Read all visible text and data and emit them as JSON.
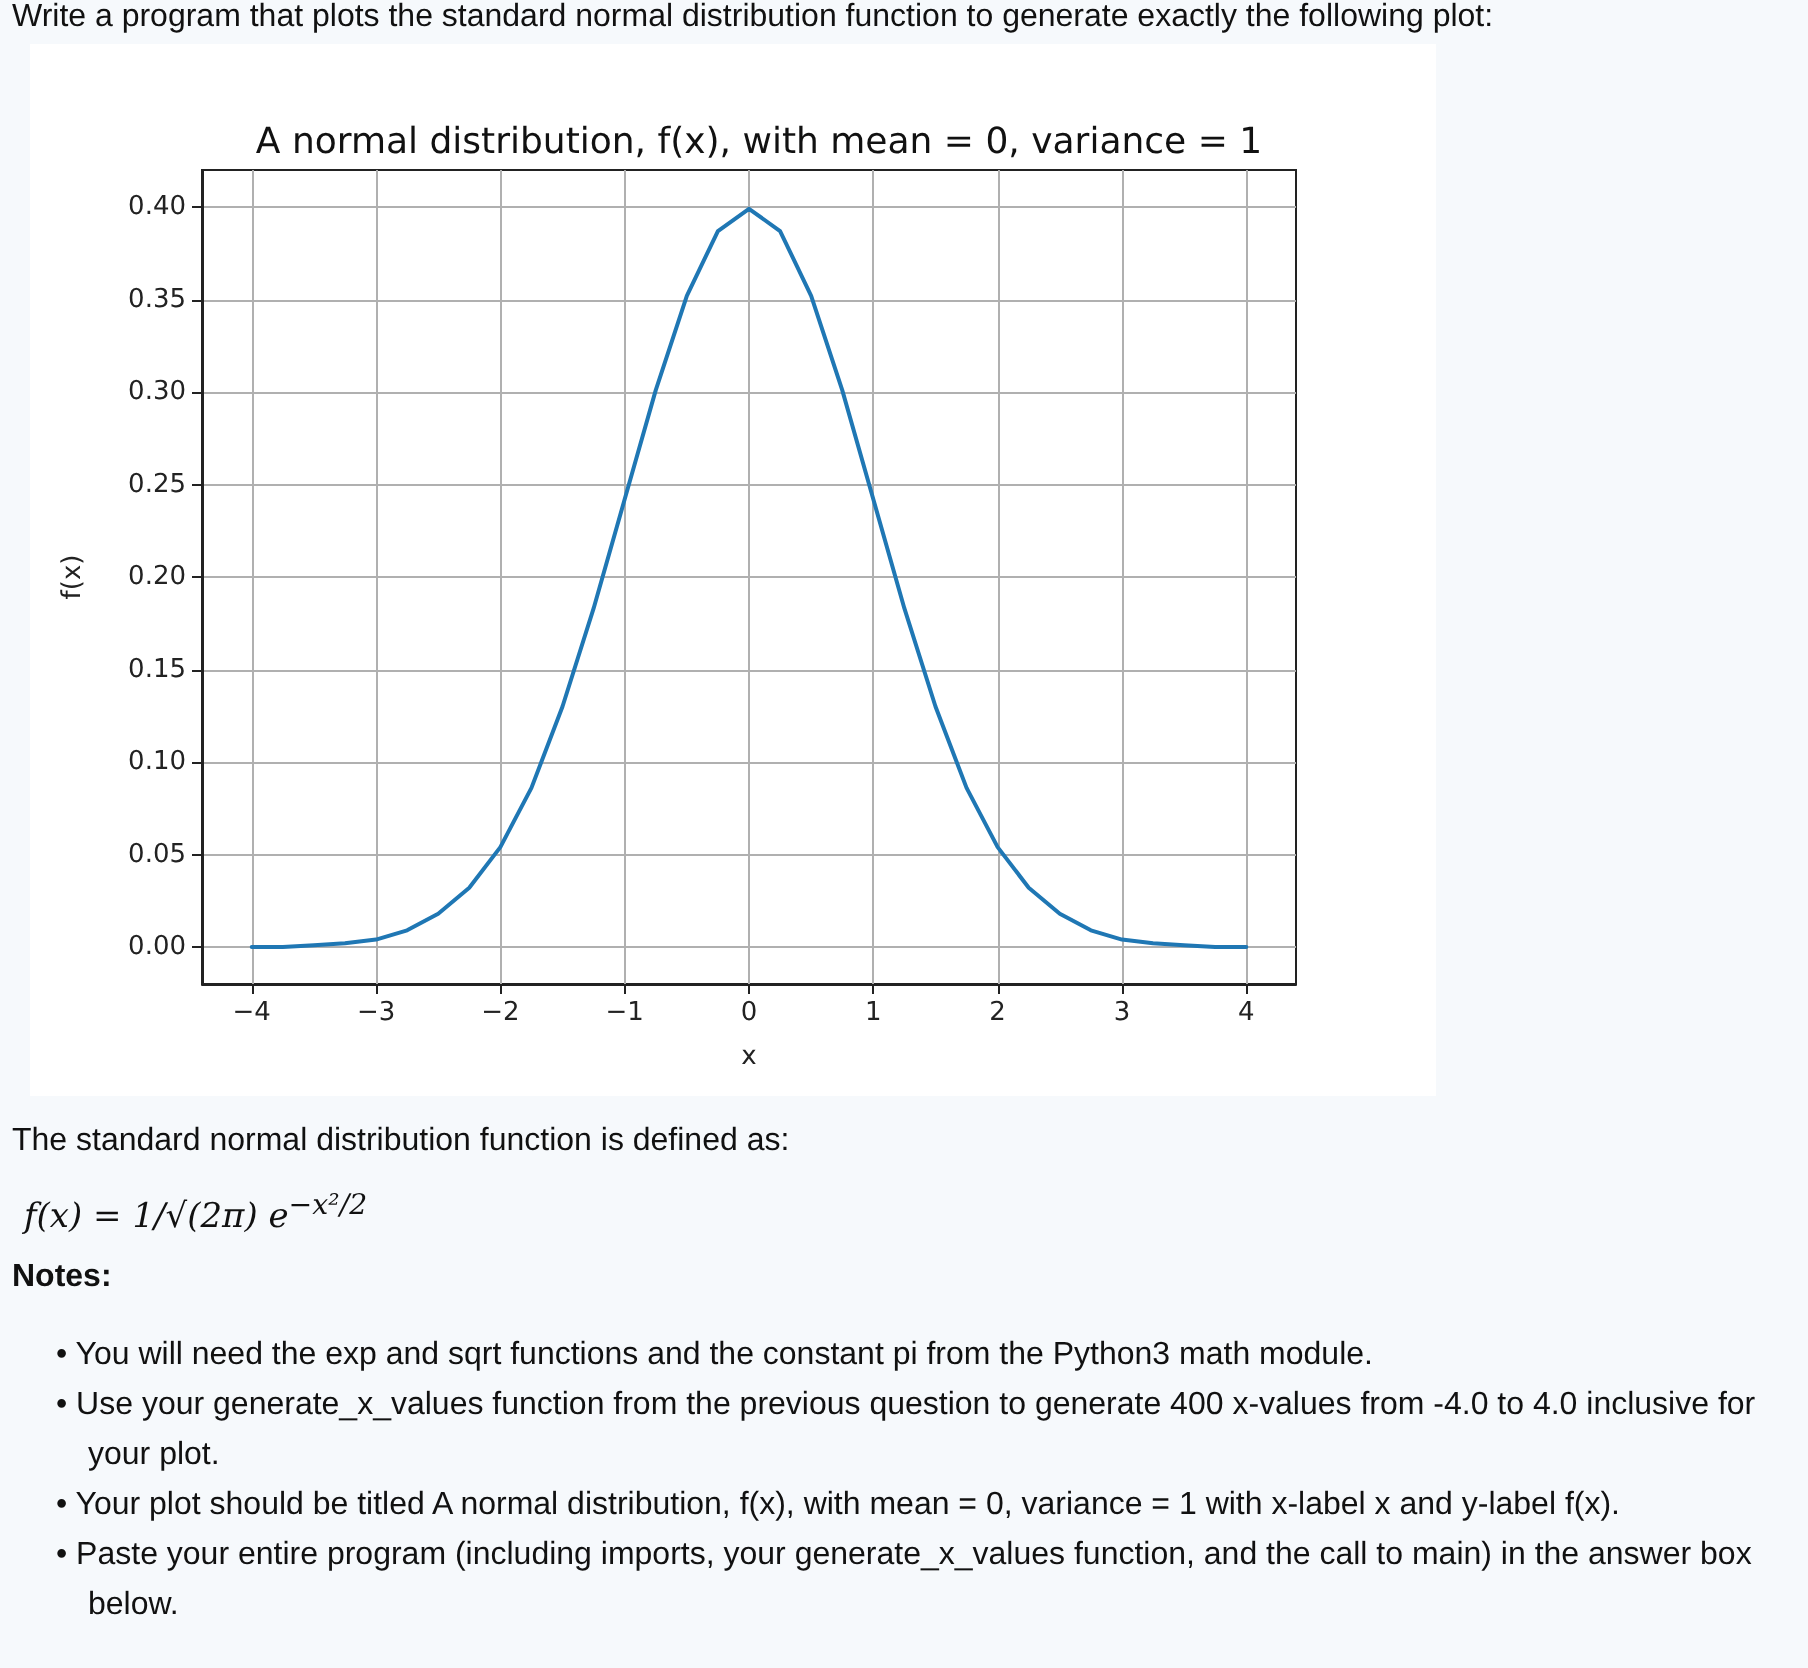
{
  "chart_data": {
    "type": "line",
    "title": "A normal distribution, f(x), with mean = 0, variance = 1",
    "xlabel": "x",
    "ylabel": "f(x)",
    "x": [
      -4,
      -3.75,
      -3.5,
      -3.25,
      -3,
      -2.75,
      -2.5,
      -2.25,
      -2,
      -1.75,
      -1.5,
      -1.25,
      -1,
      -0.75,
      -0.5,
      -0.25,
      0,
      0.25,
      0.5,
      0.75,
      1,
      1.25,
      1.5,
      1.75,
      2,
      2.25,
      2.5,
      2.75,
      3,
      3.25,
      3.5,
      3.75,
      4
    ],
    "series": [
      {
        "color": "#1f77b4",
        "values": [
          0.0,
          0.0,
          0.001,
          0.002,
          0.004,
          0.009,
          0.018,
          0.032,
          0.054,
          0.086,
          0.13,
          0.183,
          0.242,
          0.301,
          0.352,
          0.387,
          0.399,
          0.387,
          0.352,
          0.301,
          0.242,
          0.183,
          0.13,
          0.086,
          0.054,
          0.032,
          0.018,
          0.009,
          0.004,
          0.002,
          0.001,
          0.0,
          0.0
        ]
      }
    ],
    "xlim": [
      -4.4,
      4.4
    ],
    "ylim": [
      -0.02,
      0.42
    ],
    "xticks": [
      {
        "value": -4,
        "label": "−4"
      },
      {
        "value": -3,
        "label": "−3"
      },
      {
        "value": -2,
        "label": "−2"
      },
      {
        "value": -1,
        "label": "−1"
      },
      0,
      1,
      2,
      3,
      4
    ],
    "yticks": [
      {
        "value": 0,
        "label": "0.00"
      },
      {
        "value": 0.05,
        "label": "0.05"
      },
      {
        "value": 0.1,
        "label": "0.10"
      },
      {
        "value": 0.15,
        "label": "0.15"
      },
      {
        "value": 0.2,
        "label": "0.20"
      },
      {
        "value": 0.25,
        "label": "0.25"
      },
      {
        "value": 0.3,
        "label": "0.30"
      },
      {
        "value": 0.35,
        "label": "0.35"
      },
      {
        "value": 0.4,
        "label": "0.40"
      }
    ],
    "grid": true,
    "marker": "none",
    "line_style": "solid",
    "annotations": [
      "Write a program that plots the standard normal distribution function to generate exactly the following plot:",
      "The standard normal distribution function is defined as:",
      "f(x) = 1/√(2π) e$^{−x²/2}$",
      "Notes:",
      "• You will need the exp and sqrt functions and the constant pi from the Python3 math module.",
      "• Use your generate_x_values function from the previous question to generate 400 x-values from -4.0 to 4.0 inclusive for your plot.",
      "• Your plot should be titled A normal distribution, f(x), with mean = 0, variance = 1 with x-label x and y-label f(x).",
      "• Paste your entire program (including imports, your generate_x_values function, and the call to main) in the answer box below."
    ]
  }
}
